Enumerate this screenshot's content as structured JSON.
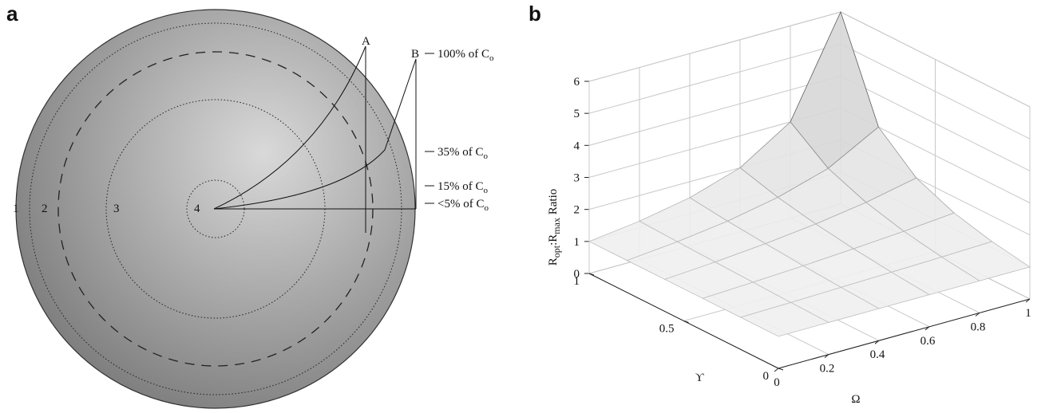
{
  "panel_a": {
    "label": "a",
    "zones": [
      "1",
      "2",
      "3",
      "4"
    ],
    "curves": [
      "A",
      "B"
    ],
    "levels": [
      {
        "text": "100% of C",
        "sub": "o"
      },
      {
        "text": "35% of C",
        "sub": "o"
      },
      {
        "text": "15% of C",
        "sub": "o"
      },
      {
        "text": "<5% of C",
        "sub": "o"
      }
    ]
  },
  "chart_data": {
    "type": "surface",
    "panel_label": "b",
    "zlabel": [
      {
        "text": "R"
      },
      {
        "text": "opt",
        "sub": true
      },
      {
        "text": ":R"
      },
      {
        "text": "max",
        "sub": true
      },
      {
        "text": " Ratio"
      }
    ],
    "xlabel": "Ω",
    "ylabel": "ϒ",
    "x": [
      0,
      0.2,
      0.4,
      0.6,
      0.8,
      1
    ],
    "y": [
      0,
      0.2,
      0.4,
      0.6,
      0.8,
      1
    ],
    "z": [
      [
        1,
        1,
        1,
        1,
        1,
        1
      ],
      [
        1,
        1.03,
        1.07,
        1.11,
        1.15,
        1.2
      ],
      [
        1,
        1.07,
        1.15,
        1.25,
        1.36,
        1.5
      ],
      [
        1,
        1.11,
        1.25,
        1.43,
        1.67,
        2
      ],
      [
        1,
        1.15,
        1.36,
        1.67,
        2.14,
        3
      ],
      [
        1,
        1.2,
        1.5,
        2,
        3,
        6
      ]
    ],
    "xlim": [
      0,
      1
    ],
    "ylim": [
      0,
      1
    ],
    "zlim": [
      0,
      6
    ],
    "xticks": [
      0,
      0.2,
      0.4,
      0.6,
      0.8,
      1
    ],
    "yticks": [
      0,
      0.5,
      1
    ],
    "zticks": [
      0,
      1,
      2,
      3,
      4,
      5,
      6
    ],
    "grid": true
  }
}
